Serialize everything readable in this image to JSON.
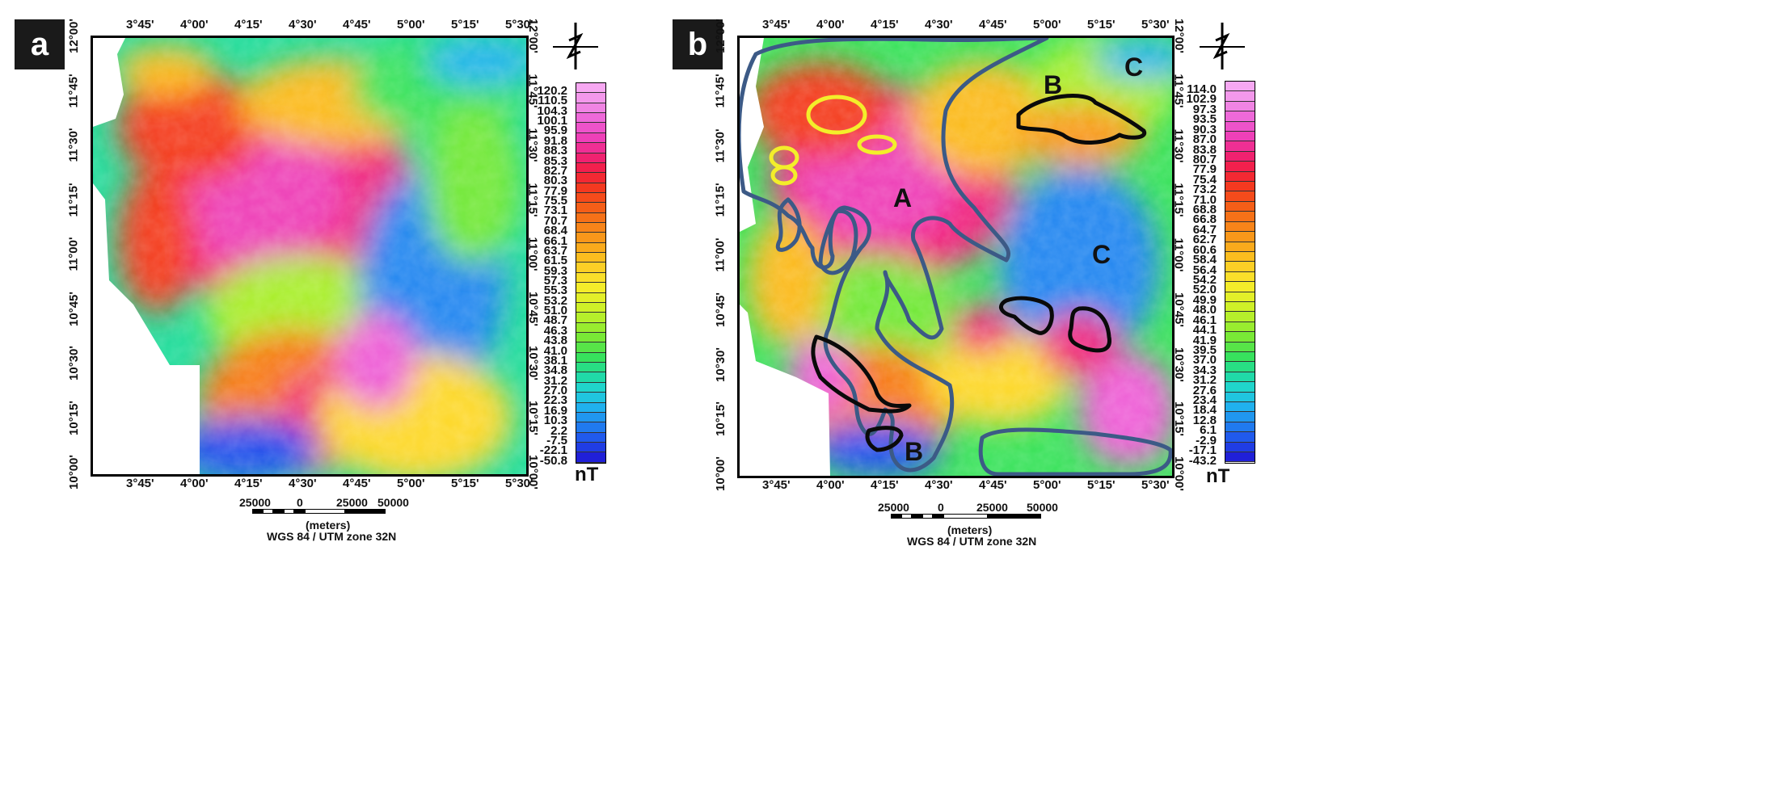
{
  "panel_a": {
    "label": "a",
    "top_ticks": [
      "3°45'",
      "4°00'",
      "4°15'",
      "4°30'",
      "4°45'",
      "5°00'",
      "5°15'",
      "5°30'"
    ],
    "bottom_ticks": [
      "3°45'",
      "4°00'",
      "4°15'",
      "4°30'",
      "4°45'",
      "5°00'",
      "5°15'",
      "5°30'"
    ],
    "left_ticks": [
      "12°00'",
      "11°45'",
      "11°30'",
      "11°15'",
      "11°00'",
      "10°45'",
      "10°30'",
      "10°15'",
      "10°00'"
    ],
    "right_ticks": [
      "12°00'",
      "11°45'",
      "11°30'",
      "11°15'",
      "11°00'",
      "10°45'",
      "10°30'",
      "10°15'",
      "10°00'"
    ],
    "colorbar": [
      "120.2",
      "110.5",
      "104.3",
      "100.1",
      "95.9",
      "91.8",
      "88.3",
      "85.3",
      "82.7",
      "80.3",
      "77.9",
      "75.5",
      "73.1",
      "70.7",
      "68.4",
      "66.1",
      "63.7",
      "61.5",
      "59.3",
      "57.3",
      "55.3",
      "53.2",
      "51.0",
      "48.7",
      "46.3",
      "43.8",
      "41.0",
      "38.1",
      "34.8",
      "31.2",
      "27.0",
      "22.3",
      "16.9",
      "10.3",
      "2.2",
      "-7.5",
      "-22.1",
      "-50.8"
    ],
    "unit": "nT",
    "scale_labels": [
      "25000",
      "0",
      "25000",
      "50000"
    ],
    "scale_unit": "(meters)",
    "projection": "WGS 84 / UTM zone 32N"
  },
  "panel_b": {
    "label": "b",
    "top_ticks": [
      "3°45'",
      "4°00'",
      "4°15'",
      "4°30'",
      "4°45'",
      "5°00'",
      "5°15'",
      "5°30'"
    ],
    "bottom_ticks": [
      "3°45'",
      "4°00'",
      "4°15'",
      "4°30'",
      "4°45'",
      "5°00'",
      "5°15'",
      "5°30'"
    ],
    "left_ticks": [
      "12°00'",
      "11°45'",
      "11°30'",
      "11°15'",
      "11°00'",
      "10°45'",
      "10°30'",
      "10°15'",
      "10°00'"
    ],
    "right_ticks": [
      "12°00'",
      "11°45'",
      "11°30'",
      "11°15'",
      "11°00'",
      "10°45'",
      "10°30'",
      "10°15'",
      "10°00'"
    ],
    "colorbar": [
      "114.0",
      "102.9",
      "97.3",
      "93.5",
      "90.3",
      "87.0",
      "83.8",
      "80.7",
      "77.9",
      "75.4",
      "73.2",
      "71.0",
      "68.8",
      "66.8",
      "64.7",
      "62.7",
      "60.6",
      "58.4",
      "56.4",
      "54.2",
      "52.0",
      "49.9",
      "48.0",
      "46.1",
      "44.1",
      "41.9",
      "39.5",
      "37.0",
      "34.3",
      "31.2",
      "27.6",
      "23.4",
      "18.4",
      "12.8",
      "6.1",
      "-2.9",
      "-17.1",
      "-43.2"
    ],
    "unit": "nT",
    "scale_labels": [
      "25000",
      "0",
      "25000",
      "50000"
    ],
    "scale_unit": "(meters)",
    "projection": "WGS 84 / UTM zone 32N",
    "zones": [
      "A",
      "B",
      "C",
      "B",
      "C"
    ]
  },
  "colors": {
    "ramp": [
      "#f7a8f2",
      "#f08de6",
      "#ee5fd6",
      "#ee3fb7",
      "#f0227a",
      "#f2203f",
      "#f43a1e",
      "#f55a18",
      "#f77a18",
      "#f99a1a",
      "#fbba1e",
      "#fdd82a",
      "#f3ee2a",
      "#d2f028",
      "#a8ee2c",
      "#72e838",
      "#38e25a",
      "#20dc9a",
      "#20d4d4",
      "#20b2ee",
      "#2086f0",
      "#2050ec",
      "#2020d8"
    ],
    "outline_blue": "#3c5a86",
    "outline_black": "#0a0a0a"
  }
}
